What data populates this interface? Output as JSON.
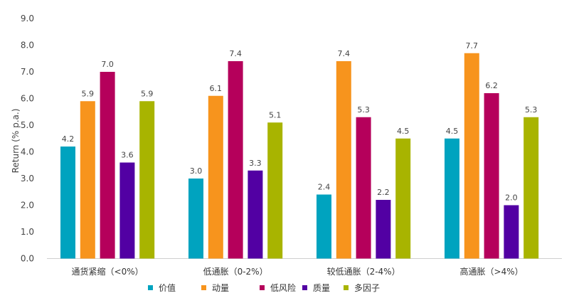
{
  "chart_data": {
    "type": "bar",
    "ylabel": "Return (% p.a.)",
    "ylim": [
      0,
      9
    ],
    "yticks": [
      "0.0",
      "1.0",
      "2.0",
      "3.0",
      "4.0",
      "5.0",
      "6.0",
      "7.0",
      "8.0",
      "9.0"
    ],
    "grid": false,
    "legend_position": "bottom",
    "categories": [
      "通货紧缩（<0%）",
      "低通胀（0-2%）",
      "较低通胀（2-4%）",
      "高通胀（>4%）"
    ],
    "series": [
      {
        "name": "价值",
        "color": "#00A3BF",
        "values": [
          4.2,
          3.0,
          2.4,
          4.5
        ],
        "labels": [
          "4.2",
          "3.0",
          "2.4",
          "4.5"
        ]
      },
      {
        "name": "动量",
        "color": "#F7941D",
        "values": [
          5.9,
          6.1,
          7.4,
          7.7
        ],
        "labels": [
          "5.9",
          "6.1",
          "7.4",
          "7.7"
        ]
      },
      {
        "name": "低风险",
        "color": "#B5005B",
        "values": [
          7.0,
          7.4,
          5.3,
          6.2
        ],
        "labels": [
          "7.0",
          "7.4",
          "5.3",
          "6.2"
        ]
      },
      {
        "name": "质量",
        "color": "#5200A3",
        "values": [
          3.6,
          3.3,
          2.2,
          2.0
        ],
        "labels": [
          "3.6",
          "3.3",
          "2.2",
          "2.0"
        ]
      },
      {
        "name": "多因子",
        "color": "#A8B400",
        "values": [
          5.9,
          5.1,
          4.5,
          5.3
        ],
        "labels": [
          "5.9",
          "5.1",
          "4.5",
          "5.3"
        ]
      }
    ]
  }
}
